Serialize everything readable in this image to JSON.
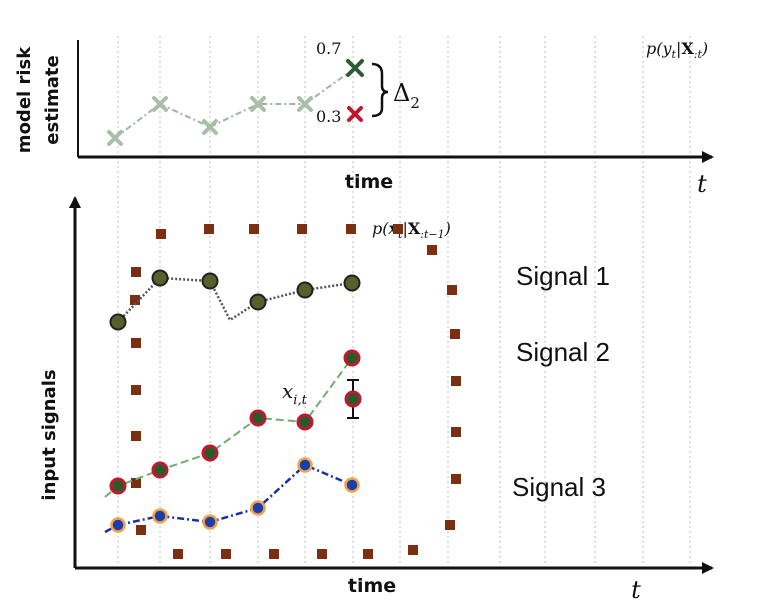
{
  "top_panel": {
    "ylabel_line1": "model risk",
    "ylabel_line2": "estimate",
    "xlabel": "time",
    "axis_t": "t",
    "formula": "p(y_t|X_{:t})",
    "annotation_high": "0.7",
    "annotation_low": "0.3",
    "delta_label": "Δ",
    "delta_sub": "2",
    "series_color": "#9db69d",
    "high_color": "#2e5a35",
    "low_color": "#c0182f"
  },
  "bottom_panel": {
    "ylabel": "input signals",
    "xlabel": "time",
    "axis_t": "t",
    "formula": "p(x_t|X_{:t-1})",
    "point_label": "x_{i,t}",
    "signals": [
      {
        "name": "Signal 1",
        "fill": "#55602a",
        "stroke": "#222222",
        "line": "#555555"
      },
      {
        "name": "Signal 2",
        "fill": "#2a5a2a",
        "stroke": "#c0182f",
        "line": "#6fae6f"
      },
      {
        "name": "Signal 3",
        "fill": "#1b3fa8",
        "stroke": "#f2a248",
        "line": "#1b2fa0"
      }
    ],
    "boundary_color": "#7a2f12"
  },
  "grid": {
    "color": "#c8c8c8"
  }
}
